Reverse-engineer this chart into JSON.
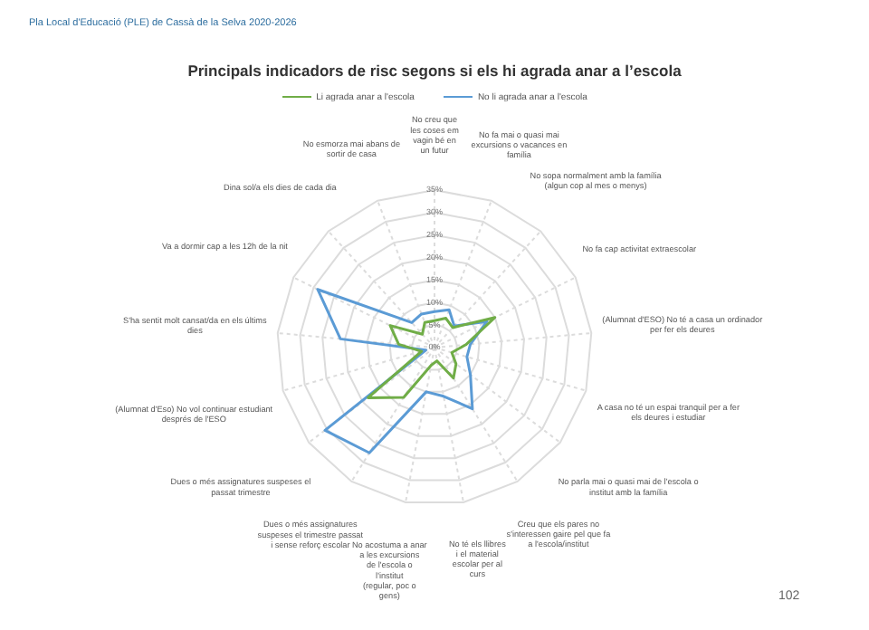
{
  "chart_data": {
    "type": "radar",
    "title": "Principals indicadors de risc segons si els hi agrada anar a l’escola",
    "categories": [
      "No creu que les coses em vagin bé en un futur",
      "No fa mai o quasi mai excursions o vacances en família",
      "No sopa normalment amb la família (algun cop al mes o menys)",
      "No fa cap activitat extraescolar",
      "(Alumnat d'ESO) No té a casa un ordinador per fer els deures",
      "A casa no té un espai tranquil per a fer els deures i estudiar",
      "No parla mai o quasi mai de l'escola o institut amb la família",
      "Creu que els pares no s'interessen gaire pel que fa a l'escola/institut",
      "No té els llibres i el material escolar per al curs",
      "No acostuma a anar a les excursions de l'escola o l'institut (regular, poc o gens)",
      "Dues o més assignatures suspeses el trimestre passat i sense reforç escolar",
      "Dues o més assignatures suspeses el passat trimestre",
      "(Alumnat d'Eso) No vol continuar estudiant després de l'ESO",
      "S'ha sentit molt cansat/da en els últims dies",
      "Va a dormir cap a les 12h de la nit",
      "Dina sol/a els dies de cada dia",
      "No esmorza mai abans de sortir de casa"
    ],
    "series": [
      {
        "name": "Li agrada anar a l'escola",
        "color": "#70ad47",
        "values": [
          6,
          7,
          6,
          15,
          7,
          4,
          6,
          8,
          3,
          4,
          13,
          18.5,
          3,
          8,
          11,
          4,
          6
        ]
      },
      {
        "name": "No li agrada anar a l'escola",
        "color": "#5b9bd5",
        "values": [
          8,
          9,
          6.5,
          13,
          8,
          7.5,
          10,
          16,
          11,
          10,
          27.5,
          30.5,
          2,
          21,
          29,
          7.5,
          8
        ]
      }
    ],
    "ylim": [
      0,
      35
    ],
    "yticks": [
      {
        "value": 0,
        "label": "0%"
      },
      {
        "value": 5,
        "label": "5%"
      },
      {
        "value": 10,
        "label": "10%"
      },
      {
        "value": 15,
        "label": "15%"
      },
      {
        "value": 20,
        "label": "20%"
      },
      {
        "value": 25,
        "label": "25%"
      },
      {
        "value": 30,
        "label": "30%"
      },
      {
        "value": 35,
        "label": "35%"
      }
    ],
    "grid": true,
    "legend": "top",
    "marker": "none",
    "line_style": "solid",
    "annotations": [
      "Pla Local d'Educació (PLE) de Cassà de la Selva 2020-2026",
      "102"
    ]
  }
}
